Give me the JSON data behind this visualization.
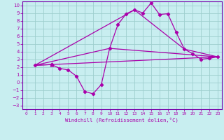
{
  "xlabel": "Windchill (Refroidissement éolien,°C)",
  "bg_color": "#c8eef0",
  "grid_color": "#9ecece",
  "line_color": "#aa00aa",
  "spine_color": "#7700aa",
  "xlim": [
    -0.5,
    23.5
  ],
  "ylim": [
    -3.5,
    10.5
  ],
  "xticks": [
    0,
    1,
    2,
    3,
    4,
    5,
    6,
    7,
    8,
    9,
    10,
    11,
    12,
    13,
    14,
    15,
    16,
    17,
    18,
    19,
    20,
    21,
    22,
    23
  ],
  "yticks": [
    -3,
    -2,
    -1,
    0,
    1,
    2,
    3,
    4,
    5,
    6,
    7,
    8,
    9,
    10
  ],
  "series1_x": [
    1,
    3,
    4,
    5,
    6,
    7,
    8,
    9,
    10,
    11,
    12,
    13,
    14,
    15,
    16,
    17,
    18,
    19,
    20,
    21,
    22,
    23
  ],
  "series1_y": [
    2.2,
    2.3,
    1.8,
    1.6,
    0.8,
    -1.2,
    -1.5,
    -0.3,
    4.4,
    7.5,
    8.9,
    9.4,
    9.0,
    10.3,
    8.8,
    8.9,
    6.5,
    4.3,
    3.7,
    3.0,
    3.1,
    3.3
  ],
  "series2_x": [
    1,
    23
  ],
  "series2_y": [
    2.2,
    3.3
  ],
  "series3_x": [
    1,
    10,
    23
  ],
  "series3_y": [
    2.2,
    4.4,
    3.3
  ],
  "series4_x": [
    1,
    13,
    19,
    23
  ],
  "series4_y": [
    2.2,
    9.4,
    4.3,
    3.3
  ]
}
